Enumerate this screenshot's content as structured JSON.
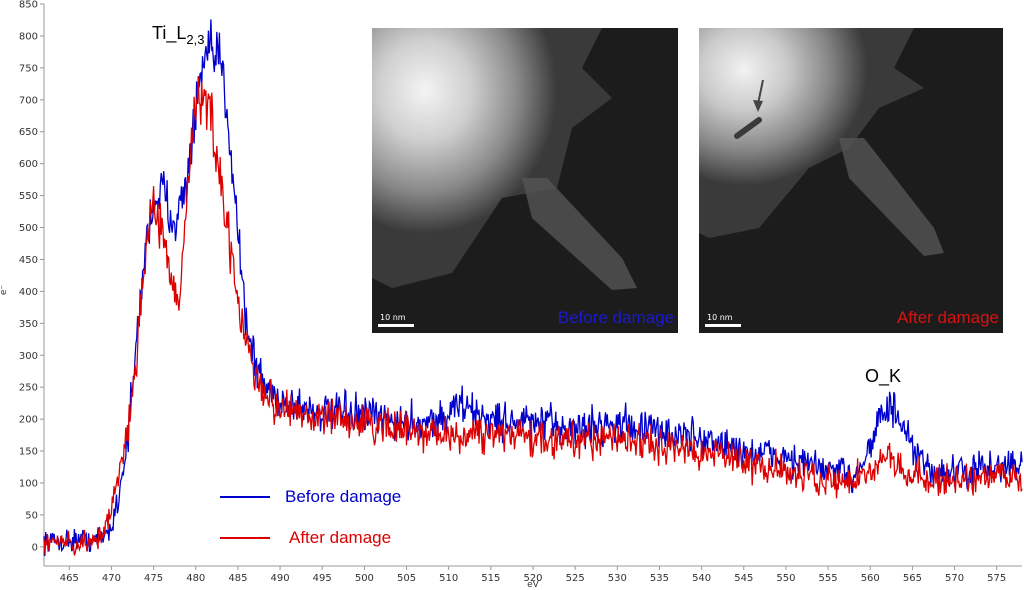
{
  "chart_data": {
    "type": "line",
    "xlabel": "eV",
    "ylabel": "e⁻",
    "xlim": [
      462,
      578
    ],
    "ylim": [
      -30,
      850
    ],
    "x_ticks": [
      465,
      470,
      475,
      480,
      485,
      490,
      495,
      500,
      505,
      510,
      515,
      520,
      525,
      530,
      535,
      540,
      545,
      550,
      555,
      560,
      565,
      570,
      575
    ],
    "y_ticks": [
      0,
      50,
      100,
      150,
      200,
      250,
      300,
      350,
      400,
      450,
      500,
      550,
      600,
      650,
      700,
      750,
      800,
      850
    ],
    "annotations": [
      {
        "text_main": "Ti_L",
        "text_sub": "2,3",
        "x": 479,
        "y": 800
      },
      {
        "text_main": "O_K",
        "text_sub": "",
        "x": 562,
        "y": 260
      }
    ],
    "legend": {
      "position": "bottom-left"
    },
    "series": [
      {
        "name": "Before damage",
        "color": "#0000cc",
        "points": [
          [
            462,
            10
          ],
          [
            464,
            8
          ],
          [
            466,
            12
          ],
          [
            468,
            10
          ],
          [
            469,
            15
          ],
          [
            470,
            30
          ],
          [
            471,
            90
          ],
          [
            472,
            180
          ],
          [
            473,
            320
          ],
          [
            474,
            470
          ],
          [
            475,
            540
          ],
          [
            476,
            560
          ],
          [
            477,
            520
          ],
          [
            478,
            520
          ],
          [
            479,
            580
          ],
          [
            480,
            680
          ],
          [
            481,
            760
          ],
          [
            482,
            770
          ],
          [
            483,
            760
          ],
          [
            484,
            650
          ],
          [
            485,
            500
          ],
          [
            486,
            350
          ],
          [
            487,
            290
          ],
          [
            488,
            255
          ],
          [
            490,
            230
          ],
          [
            495,
            210
          ],
          [
            500,
            205
          ],
          [
            505,
            195
          ],
          [
            510,
            200
          ],
          [
            511,
            230
          ],
          [
            512,
            215
          ],
          [
            515,
            200
          ],
          [
            520,
            195
          ],
          [
            525,
            185
          ],
          [
            530,
            195
          ],
          [
            535,
            180
          ],
          [
            540,
            170
          ],
          [
            545,
            150
          ],
          [
            550,
            140
          ],
          [
            555,
            120
          ],
          [
            558,
            110
          ],
          [
            560,
            160
          ],
          [
            561,
            200
          ],
          [
            562,
            215
          ],
          [
            563,
            210
          ],
          [
            564,
            180
          ],
          [
            565,
            150
          ],
          [
            567,
            120
          ],
          [
            570,
            115
          ],
          [
            575,
            125
          ],
          [
            578,
            130
          ]
        ]
      },
      {
        "name": "After damage",
        "color": "#dd0000",
        "points": [
          [
            462,
            10
          ],
          [
            464,
            8
          ],
          [
            466,
            5
          ],
          [
            468,
            8
          ],
          [
            469,
            20
          ],
          [
            470,
            60
          ],
          [
            471,
            130
          ],
          [
            472,
            190
          ],
          [
            473,
            290
          ],
          [
            474,
            460
          ],
          [
            475,
            540
          ],
          [
            476,
            510
          ],
          [
            477,
            420
          ],
          [
            478,
            370
          ],
          [
            479,
            560
          ],
          [
            480,
            700
          ],
          [
            481,
            720
          ],
          [
            482,
            650
          ],
          [
            483,
            560
          ],
          [
            484,
            470
          ],
          [
            485,
            390
          ],
          [
            486,
            320
          ],
          [
            487,
            270
          ],
          [
            488,
            240
          ],
          [
            490,
            220
          ],
          [
            495,
            200
          ],
          [
            500,
            195
          ],
          [
            505,
            180
          ],
          [
            510,
            175
          ],
          [
            515,
            180
          ],
          [
            520,
            170
          ],
          [
            525,
            165
          ],
          [
            530,
            170
          ],
          [
            535,
            160
          ],
          [
            540,
            150
          ],
          [
            545,
            135
          ],
          [
            550,
            120
          ],
          [
            555,
            105
          ],
          [
            558,
            100
          ],
          [
            560,
            120
          ],
          [
            562,
            140
          ],
          [
            563,
            130
          ],
          [
            565,
            120
          ],
          [
            567,
            105
          ],
          [
            570,
            100
          ],
          [
            575,
            110
          ],
          [
            578,
            105
          ]
        ]
      }
    ]
  },
  "insets": [
    {
      "caption": "Before damage",
      "scale_label": "10 nm",
      "caption_color": "#1a1acc"
    },
    {
      "caption": "After damage",
      "scale_label": "10 nm",
      "caption_color": "#dd1111"
    }
  ]
}
